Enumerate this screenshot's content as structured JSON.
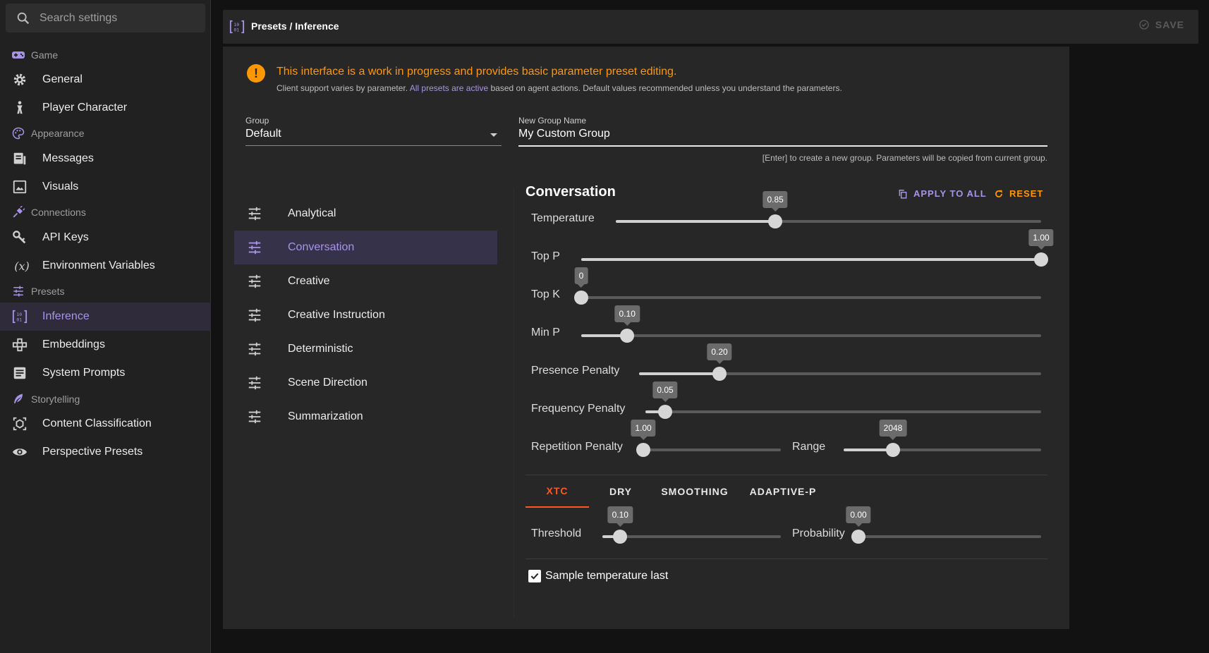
{
  "search": {
    "placeholder": "Search settings"
  },
  "sidebar": {
    "sections": [
      {
        "label": "Game",
        "icon": "gamepad-icon"
      },
      {
        "label": "Appearance",
        "icon": "palette-icon"
      },
      {
        "label": "Connections",
        "icon": "plug-icon"
      },
      {
        "label": "Presets",
        "icon": "tune-icon"
      },
      {
        "label": "Storytelling",
        "icon": "feather-icon"
      }
    ],
    "items": [
      {
        "label": "General",
        "icon": "gear-icon"
      },
      {
        "label": "Player Character",
        "icon": "person-icon"
      },
      {
        "label": "Messages",
        "icon": "messages-icon"
      },
      {
        "label": "Visuals",
        "icon": "image-icon"
      },
      {
        "label": "API Keys",
        "icon": "key-icon"
      },
      {
        "label": "Environment Variables",
        "icon": "variable-icon"
      },
      {
        "label": "Inference",
        "icon": "inference-icon"
      },
      {
        "label": "Embeddings",
        "icon": "embeddings-icon"
      },
      {
        "label": "System Prompts",
        "icon": "document-icon"
      },
      {
        "label": "Content Classification",
        "icon": "classification-icon"
      },
      {
        "label": "Perspective Presets",
        "icon": "eye-icon"
      }
    ]
  },
  "header": {
    "breadcrumb": "Presets / Inference",
    "save_label": "SAVE"
  },
  "notice": {
    "title": "This interface is a work in progress and provides basic parameter preset editing.",
    "sub_before": "Client support varies by parameter. ",
    "sub_link": "All presets are active",
    "sub_after": " based on agent actions. Default values recommended unless you understand the parameters."
  },
  "group": {
    "label": "Group",
    "value": "Default"
  },
  "new_group": {
    "label": "New Group Name",
    "value": "My Custom Group",
    "hint": "[Enter] to create a new group. Parameters will be copied from current group."
  },
  "presets": [
    {
      "label": "Analytical"
    },
    {
      "label": "Conversation"
    },
    {
      "label": "Creative"
    },
    {
      "label": "Creative Instruction"
    },
    {
      "label": "Deterministic"
    },
    {
      "label": "Scene Direction"
    },
    {
      "label": "Summarization"
    }
  ],
  "editor": {
    "title": "Conversation",
    "apply_all": "APPLY TO ALL",
    "reset": "RESET",
    "sliders": [
      {
        "label": "Temperature",
        "value": "0.85",
        "fraction": 0.375
      },
      {
        "label": "Top P",
        "value": "1.00",
        "fraction": 1.0
      },
      {
        "label": "Top K",
        "value": "0",
        "fraction": 0.0
      },
      {
        "label": "Min P",
        "value": "0.10",
        "fraction": 0.1
      },
      {
        "label": "Presence Penalty",
        "value": "0.20",
        "fraction": 0.2
      },
      {
        "label": "Frequency Penalty",
        "value": "0.05",
        "fraction": 0.05
      },
      {
        "label": "Repetition Penalty",
        "value": "1.00",
        "fraction": 0.0
      },
      {
        "label": "Range",
        "value": "2048",
        "fraction": 0.25
      }
    ],
    "tabs": [
      {
        "label": "XTC",
        "active": true
      },
      {
        "label": "DRY"
      },
      {
        "label": "SMOOTHING"
      },
      {
        "label": "ADAPTIVE-P"
      }
    ],
    "xtc": [
      {
        "label": "Threshold",
        "value": "0.10",
        "fraction": 0.1
      },
      {
        "label": "Probability",
        "value": "0.00",
        "fraction": 0.0
      }
    ],
    "checkbox": {
      "label": "Sample temperature last",
      "checked": true
    }
  },
  "colors": {
    "accent": "#a894e6",
    "warning": "#ff9800",
    "tab_active": "#ff5722"
  }
}
